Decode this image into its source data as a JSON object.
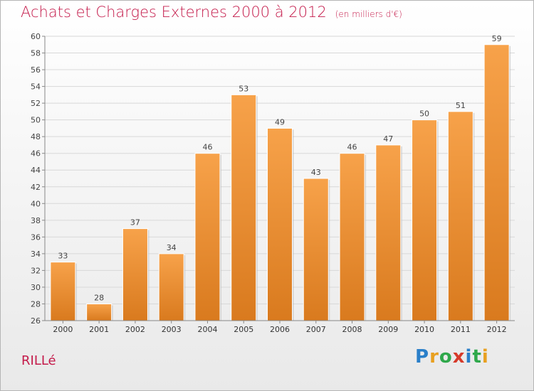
{
  "title": "Achats et Charges Externes 2000 à 2012",
  "unit_note": "(en milliers d'€)",
  "commune": "RILLé",
  "logo_text": "Proxiti",
  "colors": {
    "bar": "#f29a3c",
    "bar_dark": "#d4741a",
    "title": "#c41a4a"
  },
  "chart_data": {
    "type": "bar",
    "categories": [
      "2000",
      "2001",
      "2002",
      "2003",
      "2004",
      "2005",
      "2006",
      "2007",
      "2008",
      "2009",
      "2010",
      "2011",
      "2012"
    ],
    "values": [
      33,
      28,
      37,
      34,
      46,
      53,
      49,
      43,
      46,
      47,
      50,
      51,
      59
    ],
    "ylim": [
      26,
      60
    ],
    "yticks": [
      26,
      28,
      30,
      32,
      34,
      36,
      38,
      40,
      42,
      44,
      46,
      48,
      50,
      52,
      54,
      56,
      58,
      60
    ],
    "grid": true,
    "data_labels": true
  }
}
